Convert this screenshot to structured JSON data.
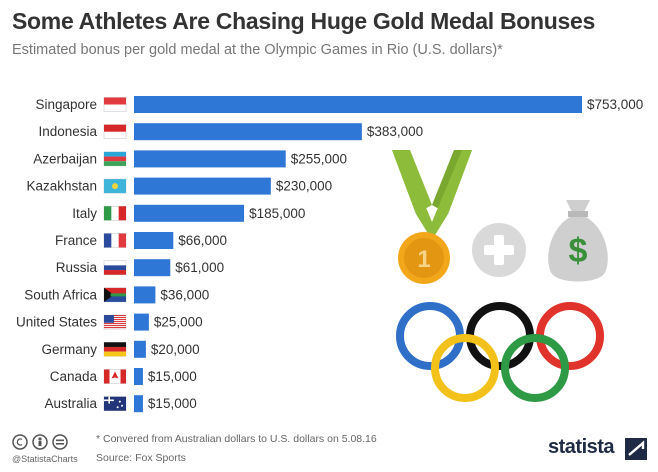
{
  "title": "Some Athletes Are Chasing Huge Gold Medal Bonuses",
  "subtitle": "Estimated bonus per gold medal at the Olympic Games in Rio (U.S. dollars)*",
  "footnote": "* Convered from Australian dollars to U.S. dollars on 5.08.16",
  "source": "Source: Fox Sports",
  "handle": "@StatistaCharts",
  "brand": "statista",
  "colors": {
    "bar": "#2f77d6",
    "label": "#333333",
    "medal_ribbon": "#8dbb3a",
    "medal_gold": "#f2a71b",
    "plus": "#d9d9d9",
    "bag": "#cfcfcf",
    "dollar": "#3a8f3a"
  },
  "icons": [
    "medal-icon",
    "plus-icon",
    "money-bag-icon",
    "olympic-rings-icon",
    "creative-commons-icon"
  ],
  "decor": {
    "medal_number": "1",
    "money_sign": "$"
  },
  "chart_data": {
    "type": "bar",
    "orientation": "horizontal",
    "categories": [
      "Singapore",
      "Indonesia",
      "Azerbaijan",
      "Kazakhstan",
      "Italy",
      "France",
      "Russia",
      "South Africa",
      "United States",
      "Germany",
      "Canada",
      "Australia"
    ],
    "values": [
      753000,
      383000,
      255000,
      230000,
      185000,
      66000,
      61000,
      36000,
      25000,
      20000,
      15000,
      15000
    ],
    "value_labels": [
      "$753,000",
      "$383,000",
      "$255,000",
      "$230,000",
      "$185,000",
      "$66,000",
      "$61,000",
      "$36,000",
      "$25,000",
      "$20,000",
      "$15,000",
      "$15,000"
    ],
    "flags": [
      "flag-singapore-icon",
      "flag-indonesia-icon",
      "flag-azerbaijan-icon",
      "flag-kazakhstan-icon",
      "flag-italy-icon",
      "flag-france-icon",
      "flag-russia-icon",
      "flag-south-africa-icon",
      "flag-united-states-icon",
      "flag-germany-icon",
      "flag-canada-icon",
      "flag-australia-icon"
    ],
    "xlim": [
      0,
      753000
    ],
    "grid": false,
    "legend": "none"
  }
}
